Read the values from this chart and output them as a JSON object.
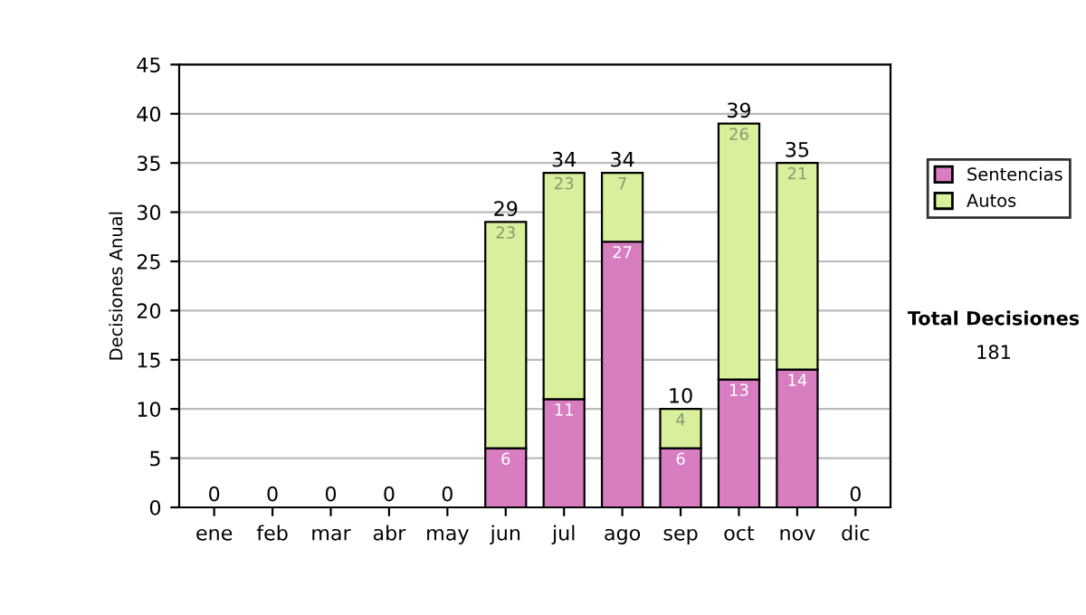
{
  "chart_data": {
    "type": "bar",
    "stacked": true,
    "ylabel": "Decisiones Anual",
    "categories": [
      "ene",
      "feb",
      "mar",
      "abr",
      "may",
      "jun",
      "jul",
      "ago",
      "sep",
      "oct",
      "nov",
      "dic"
    ],
    "series": [
      {
        "name": "Sentencias",
        "color": "#d77dc0",
        "values": [
          0,
          0,
          0,
          0,
          0,
          6,
          11,
          27,
          6,
          13,
          14,
          0
        ],
        "value_labels": [
          null,
          null,
          null,
          null,
          null,
          "6",
          "11",
          "27",
          "6",
          "13",
          "14",
          null
        ]
      },
      {
        "name": "Autos",
        "color": "#d8ef9c",
        "values": [
          0,
          0,
          0,
          0,
          0,
          23,
          23,
          7,
          4,
          26,
          21,
          0
        ],
        "value_labels": [
          null,
          null,
          null,
          null,
          null,
          "23",
          "23",
          "7",
          "4",
          "26",
          "21",
          null
        ]
      }
    ],
    "totals": [
      "0",
      "0",
      "0",
      "0",
      "0",
      "29",
      "34",
      "34",
      "10",
      "39",
      "35",
      "0"
    ],
    "ylim": [
      0,
      45
    ],
    "yticks": [
      0,
      5,
      10,
      15,
      20,
      25,
      30,
      35,
      40,
      45
    ],
    "grid": "y",
    "legend": "right",
    "annotations": [
      "Total Decisiones",
      "181"
    ]
  }
}
